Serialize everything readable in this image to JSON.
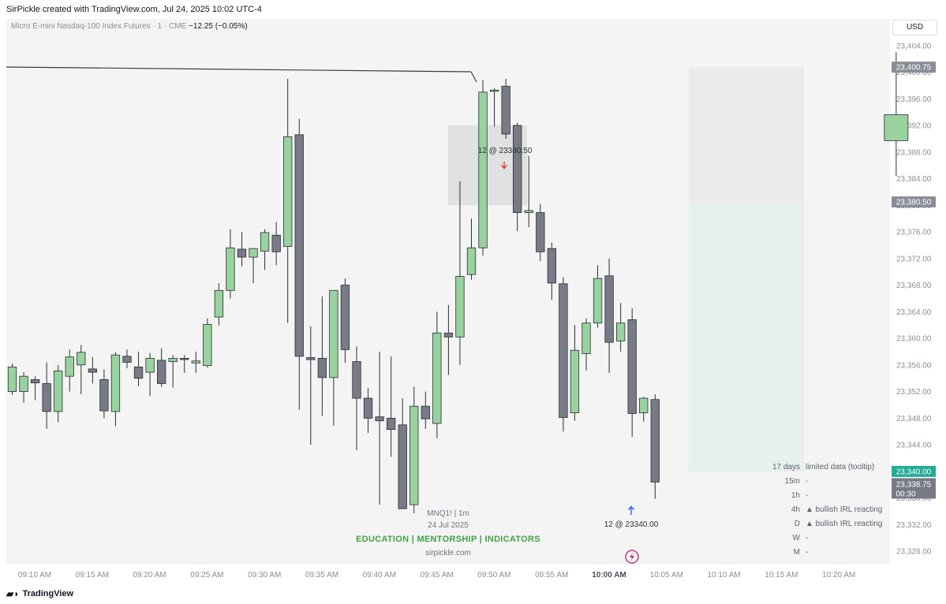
{
  "header": {
    "title": "SirPickle created with TradingView.com, Jul 24, 2025 10:02 UTC-4"
  },
  "symbol": {
    "name": "Micro E-mini Nasdaq-100 Index Futures · 1 · CME",
    "change": "−12.25 (−0.05%)"
  },
  "currency": "USD",
  "colors": {
    "up": "#98d29e",
    "down": "#787b86",
    "marker_up": "#2962ff",
    "marker_down": "#e53935",
    "accent_green": "#22ab94"
  },
  "chart_data": {
    "type": "candlestick",
    "x_ticks": [
      "09:10 AM",
      "09:15 AM",
      "09:20 AM",
      "09:25 AM",
      "09:30 AM",
      "09:35 AM",
      "09:40 AM",
      "09:45 AM",
      "09:50 AM",
      "09:55 AM",
      "10:00 AM",
      "10:05 AM",
      "10:10 AM",
      "10:15 AM",
      "10:20 AM"
    ],
    "y_ticks": [
      "23,404.00",
      "23,400.00",
      "23,396.00",
      "23,392.00",
      "23,388.00",
      "23,384.00",
      "23,380.00",
      "23,376.00",
      "23,372.00",
      "23,368.00",
      "23,364.00",
      "23,360.00",
      "23,356.00",
      "23,352.00",
      "23,348.00",
      "23,344.00",
      "23,340.00",
      "23,336.00",
      "23,332.00",
      "23,328.00"
    ],
    "ylim": [
      23326,
      23408
    ],
    "candles": [
      {
        "o": 23352.0,
        "h": 23356.2,
        "l": 23351.5,
        "c": 23355.7
      },
      {
        "o": 23352.0,
        "h": 23354.9,
        "l": 23350.3,
        "c": 23354.3
      },
      {
        "o": 23353.8,
        "h": 23354.3,
        "l": 23350.7,
        "c": 23353.3
      },
      {
        "o": 23353.2,
        "h": 23356.4,
        "l": 23346.4,
        "c": 23349.0
      },
      {
        "o": 23349.0,
        "h": 23356.0,
        "l": 23347.4,
        "c": 23355.1
      },
      {
        "o": 23354.3,
        "h": 23358.3,
        "l": 23352.0,
        "c": 23357.2
      },
      {
        "o": 23356.0,
        "h": 23359.0,
        "l": 23351.6,
        "c": 23357.9
      },
      {
        "o": 23355.4,
        "h": 23357.2,
        "l": 23353.2,
        "c": 23354.9
      },
      {
        "o": 23353.8,
        "h": 23355.3,
        "l": 23348.0,
        "c": 23349.1
      },
      {
        "o": 23349.0,
        "h": 23357.9,
        "l": 23346.8,
        "c": 23357.5
      },
      {
        "o": 23357.3,
        "h": 23358.3,
        "l": 23355.5,
        "c": 23356.4
      },
      {
        "o": 23355.7,
        "h": 23358.0,
        "l": 23352.8,
        "c": 23354.0
      },
      {
        "o": 23354.9,
        "h": 23357.8,
        "l": 23351.3,
        "c": 23357.0
      },
      {
        "o": 23356.7,
        "h": 23358.5,
        "l": 23352.7,
        "c": 23353.2
      },
      {
        "o": 23356.5,
        "h": 23357.5,
        "l": 23352.6,
        "c": 23357.0
      },
      {
        "o": 23357.0,
        "h": 23357.5,
        "l": 23354.8,
        "c": 23356.8
      },
      {
        "o": 23356.3,
        "h": 23358.0,
        "l": 23354.8,
        "c": 23356.6
      },
      {
        "o": 23355.9,
        "h": 23363.0,
        "l": 23355.6,
        "c": 23362.1
      },
      {
        "o": 23363.2,
        "h": 23368.3,
        "l": 23361.9,
        "c": 23367.2
      },
      {
        "o": 23367.2,
        "h": 23376.4,
        "l": 23366.0,
        "c": 23373.6
      },
      {
        "o": 23373.4,
        "h": 23376.0,
        "l": 23370.8,
        "c": 23372.2
      },
      {
        "o": 23372.2,
        "h": 23373.4,
        "l": 23368.3,
        "c": 23373.5
      },
      {
        "o": 23373.1,
        "h": 23376.4,
        "l": 23370.3,
        "c": 23375.9
      },
      {
        "o": 23375.5,
        "h": 23377.5,
        "l": 23371.0,
        "c": 23373.0
      },
      {
        "o": 23373.8,
        "h": 23399.0,
        "l": 23362.3,
        "c": 23390.3
      },
      {
        "o": 23390.6,
        "h": 23393.0,
        "l": 23349.3,
        "c": 23357.3
      },
      {
        "o": 23357.1,
        "h": 23361.8,
        "l": 23344.0,
        "c": 23356.8
      },
      {
        "o": 23357.0,
        "h": 23366.3,
        "l": 23348.3,
        "c": 23354.1
      },
      {
        "o": 23354.1,
        "h": 23367.1,
        "l": 23346.9,
        "c": 23367.2
      },
      {
        "o": 23368.0,
        "h": 23369.0,
        "l": 23356.3,
        "c": 23358.3
      },
      {
        "o": 23356.5,
        "h": 23358.8,
        "l": 23343.2,
        "c": 23351.0
      },
      {
        "o": 23351.0,
        "h": 23352.5,
        "l": 23345.8,
        "c": 23348.0
      },
      {
        "o": 23348.2,
        "h": 23358.0,
        "l": 23335.0,
        "c": 23347.6
      },
      {
        "o": 23348.0,
        "h": 23357.3,
        "l": 23342.2,
        "c": 23346.3
      },
      {
        "o": 23347.0,
        "h": 23351.0,
        "l": 23334.8,
        "c": 23334.4
      },
      {
        "o": 23335.0,
        "h": 23352.7,
        "l": 23333.7,
        "c": 23349.8
      },
      {
        "o": 23349.8,
        "h": 23352.0,
        "l": 23346.4,
        "c": 23347.9
      },
      {
        "o": 23347.2,
        "h": 23364.0,
        "l": 23345.0,
        "c": 23360.8
      },
      {
        "o": 23360.8,
        "h": 23365.0,
        "l": 23354.5,
        "c": 23360.2
      },
      {
        "o": 23360.2,
        "h": 23383.6,
        "l": 23356.0,
        "c": 23369.3
      },
      {
        "o": 23369.6,
        "h": 23378.0,
        "l": 23368.8,
        "c": 23373.6
      },
      {
        "o": 23373.6,
        "h": 23398.8,
        "l": 23372.4,
        "c": 23397.0
      },
      {
        "o": 23397.2,
        "h": 23397.6,
        "l": 23391.8,
        "c": 23397.3
      },
      {
        "o": 23397.9,
        "h": 23399.0,
        "l": 23390.0,
        "c": 23390.7
      },
      {
        "o": 23392.0,
        "h": 23392.4,
        "l": 23376.1,
        "c": 23378.9
      },
      {
        "o": 23378.9,
        "h": 23387.4,
        "l": 23376.7,
        "c": 23379.2
      },
      {
        "o": 23378.9,
        "h": 23380.2,
        "l": 23371.6,
        "c": 23373.0
      },
      {
        "o": 23373.5,
        "h": 23374.4,
        "l": 23365.8,
        "c": 23368.3
      },
      {
        "o": 23368.2,
        "h": 23369.2,
        "l": 23346.0,
        "c": 23348.1
      },
      {
        "o": 23348.8,
        "h": 23362.0,
        "l": 23347.6,
        "c": 23358.2
      },
      {
        "o": 23357.7,
        "h": 23363.0,
        "l": 23355.2,
        "c": 23362.3
      },
      {
        "o": 23362.3,
        "h": 23371.0,
        "l": 23361.6,
        "c": 23369.0
      },
      {
        "o": 23369.4,
        "h": 23372.0,
        "l": 23354.8,
        "c": 23359.4
      },
      {
        "o": 23359.6,
        "h": 23365.3,
        "l": 23358.0,
        "c": 23362.3
      },
      {
        "o": 23362.8,
        "h": 23364.5,
        "l": 23345.2,
        "c": 23348.7
      },
      {
        "o": 23348.8,
        "h": 23351.2,
        "l": 23347.5,
        "c": 23351.0
      },
      {
        "o": 23350.8,
        "h": 23351.6,
        "l": 23335.9,
        "c": 23338.4
      },
      null,
      null,
      null,
      null,
      null,
      null,
      null,
      null,
      null,
      null,
      null,
      null,
      null,
      null,
      null,
      null,
      null,
      null,
      null,
      null,
      {
        "o": 23389.7,
        "h": 23403.0,
        "l": 23384.4,
        "c": 23393.6
      }
    ],
    "annotations": {
      "entry_label": "12 @ 23380.50",
      "exit_label": "12 @ 23340.00"
    },
    "price_labels": {
      "high": "23,400.75",
      "entry": "23,380.50",
      "target": "23,340.00",
      "last": "23,338.75",
      "countdown": "00:30"
    },
    "levels": {
      "high": 23400.75,
      "entry": 23380.5,
      "target": 23340.0,
      "last": 23338.75,
      "short_box_low": 23380.0,
      "short_box_high": 23392.0
    }
  },
  "watermark": {
    "line1": "MNQ1!  |  1m",
    "line2": "24 Jul 2025",
    "line3": "EDUCATION  |  MENTORSHIP  |  INDICATORS",
    "line4": "sirpickle.com"
  },
  "table": [
    {
      "tf": "17 days",
      "val": "limited data (tooltip)"
    },
    {
      "tf": "15m",
      "val": "-"
    },
    {
      "tf": "1h",
      "val": "-"
    },
    {
      "tf": "4h",
      "val": "▲ bullish IRL reacting"
    },
    {
      "tf": "D",
      "val": "▲ bullish IRL reacting"
    },
    {
      "tf": "W",
      "val": "-"
    },
    {
      "tf": "M",
      "val": "-"
    }
  ],
  "footer": {
    "brand": "TradingView"
  }
}
